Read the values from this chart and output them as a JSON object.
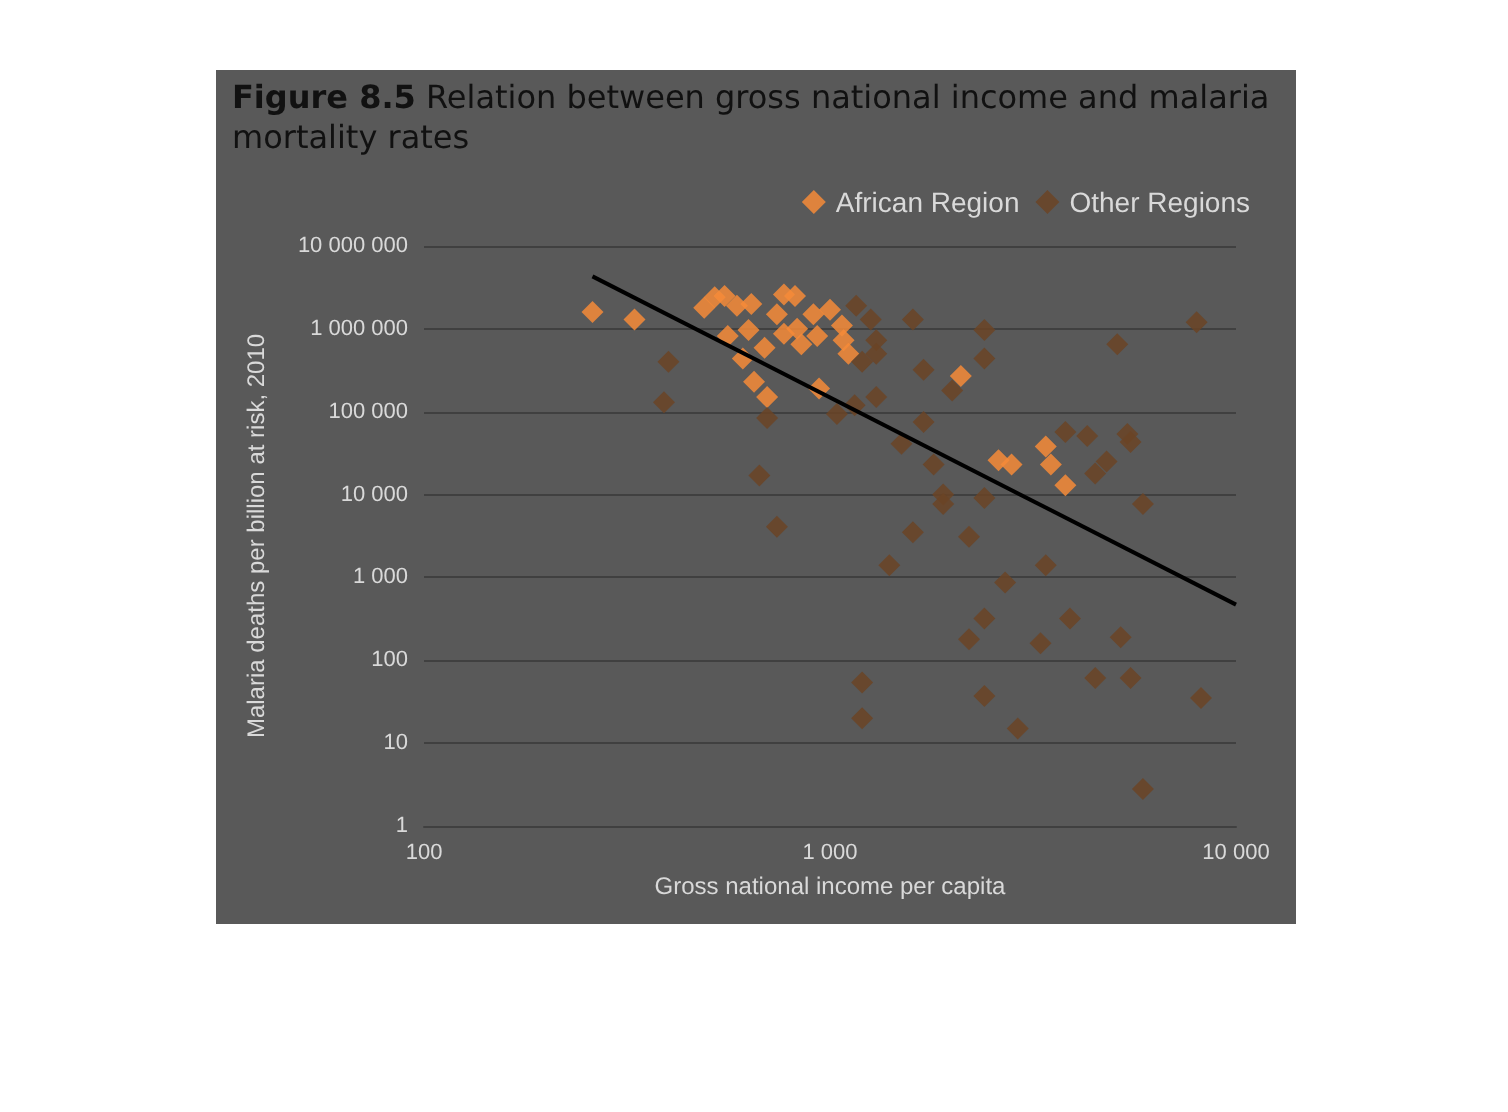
{
  "chart_data": {
    "type": "scatter",
    "title": "Figure 8.5 Relation between gross national income and malaria mortality rates",
    "xlabel": "Gross national income per capita",
    "ylabel": "Malaria deaths per billion at risk, 2010",
    "log": "xy",
    "grid": "y",
    "legend": "top right",
    "marker": "diamond",
    "xlim": [
      100,
      10000
    ],
    "xticks": [
      100,
      {
        "value": 1000,
        "label": "1 000"
      },
      {
        "value": 10000,
        "label": "10 000"
      }
    ],
    "ylim": [
      1,
      10000000
    ],
    "yticks": [
      1,
      10,
      100,
      {
        "value": 1000,
        "label": "1 000"
      },
      {
        "value": 10000,
        "label": "10 000"
      },
      {
        "value": 100000,
        "label": "100 000"
      },
      {
        "value": 1000000,
        "label": "1 000 000"
      },
      {
        "value": 10000000,
        "label": "10 000 000"
      }
    ],
    "series": [
      {
        "name": "African Region",
        "color": "#f68b38",
        "x": [
          260,
          330,
          490,
          520,
          550,
          590,
          640,
          560,
          630,
          740,
          770,
          820,
          770,
          830,
          690,
          610,
          850,
          930,
          910,
          1000,
          1070,
          1080,
          1110,
          650,
          700,
          940,
          2600,
          2800,
          3400,
          3500,
          3800,
          2100
        ],
        "values": [
          1600000,
          1300000,
          1800000,
          2400000,
          2500000,
          1900000,
          2000000,
          820000,
          970000,
          1500000,
          2600000,
          2500000,
          870000,
          1000000,
          590000,
          440000,
          650000,
          820000,
          1500000,
          1700000,
          1100000,
          730000,
          500000,
          230000,
          150000,
          190000,
          26000,
          23000,
          38000,
          23000,
          13000,
          270000
        ]
      },
      {
        "name": "Other Regions",
        "color": "#6b4426",
        "x": [
          400,
          390,
          700,
          670,
          740,
          1040,
          1160,
          1150,
          1260,
          1300,
          1300,
          1200,
          1600,
          2400,
          2400,
          1700,
          2000,
          1300,
          1700,
          1500,
          1800,
          1900,
          1900,
          2400,
          3800,
          4300,
          5400,
          5500,
          4800,
          4500,
          5900,
          5100,
          8000,
          1600,
          2200,
          1400,
          3400,
          2700,
          3900,
          2400,
          2200,
          3300,
          5200,
          1200,
          1200,
          2400,
          2900,
          4500,
          5500,
          8200,
          5900
        ],
        "values": [
          400000,
          130000,
          84000,
          17000,
          4100,
          94000,
          1900000,
          120000,
          1300000,
          730000,
          500000,
          400000,
          1300000,
          970000,
          440000,
          320000,
          180000,
          150000,
          75000,
          41000,
          23000,
          10000,
          7700,
          9100,
          57000,
          51000,
          54000,
          43000,
          25000,
          18000,
          7700,
          650000,
          1200000,
          3500,
          3100,
          1400,
          1400,
          870,
          320,
          320,
          180,
          160,
          190,
          54,
          20,
          37,
          15,
          61,
          61,
          35,
          2.8
        ]
      },
      {
        "type": "line",
        "color": "#000000",
        "marker": "none",
        "x": [
          260,
          10000
        ],
        "values": [
          4300000,
          470
        ]
      }
    ]
  }
}
